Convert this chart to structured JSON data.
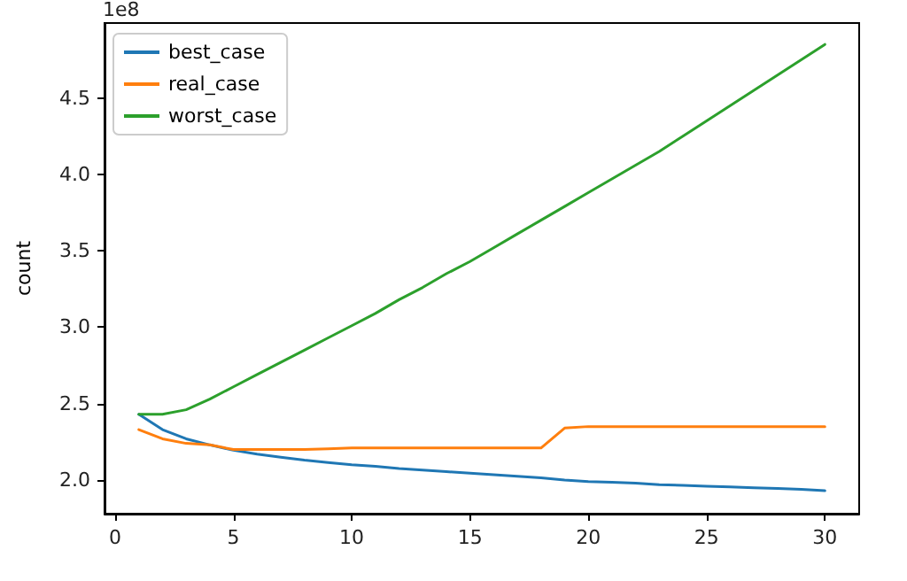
{
  "chart_data": {
    "type": "line",
    "ylabel": "count",
    "annotations": [
      "1e8"
    ],
    "x": [
      1,
      2,
      3,
      4,
      5,
      6,
      7,
      8,
      9,
      10,
      11,
      12,
      13,
      14,
      15,
      16,
      17,
      18,
      19,
      20,
      21,
      22,
      23,
      24,
      25,
      26,
      27,
      28,
      29,
      30
    ],
    "series": [
      {
        "name": "best_case",
        "color": "#1f77b4",
        "values": [
          2.43,
          2.33,
          2.27,
          2.23,
          2.195,
          2.17,
          2.15,
          2.13,
          2.115,
          2.1,
          2.09,
          2.075,
          2.065,
          2.055,
          2.045,
          2.035,
          2.025,
          2.015,
          2.0,
          1.99,
          1.985,
          1.98,
          1.97,
          1.965,
          1.96,
          1.955,
          1.95,
          1.945,
          1.94,
          1.93
        ]
      },
      {
        "name": "real_case",
        "color": "#ff7f0e",
        "values": [
          2.33,
          2.27,
          2.24,
          2.23,
          2.2,
          2.2,
          2.2,
          2.2,
          2.205,
          2.21,
          2.21,
          2.21,
          2.21,
          2.21,
          2.21,
          2.21,
          2.21,
          2.21,
          2.34,
          2.35,
          2.35,
          2.35,
          2.35,
          2.35,
          2.35,
          2.35,
          2.35,
          2.35,
          2.35,
          2.35
        ]
      },
      {
        "name": "worst_case",
        "color": "#2ca02c",
        "values": [
          2.43,
          2.43,
          2.46,
          2.53,
          2.61,
          2.69,
          2.77,
          2.85,
          2.93,
          3.01,
          3.09,
          3.18,
          3.26,
          3.35,
          3.43,
          3.52,
          3.61,
          3.7,
          3.79,
          3.88,
          3.97,
          4.06,
          4.15,
          4.25,
          4.35,
          4.45,
          4.55,
          4.65,
          4.75,
          4.85
        ]
      }
    ],
    "xlim": [
      -0.45,
      31.45
    ],
    "xticks": [
      0,
      5,
      10,
      15,
      20,
      25,
      30
    ],
    "ylim": [
      1.78,
      4.99
    ],
    "yticks": [
      {
        "value": 2,
        "label": "2.0"
      },
      {
        "value": 2.5,
        "label": "2.5"
      },
      {
        "value": 3,
        "label": "3.0"
      },
      {
        "value": 3.5,
        "label": "3.5"
      },
      {
        "value": 4,
        "label": "4.0"
      },
      {
        "value": 4.5,
        "label": "4.5"
      }
    ],
    "legend": "top left",
    "grid": false,
    "marker": "none",
    "line_style": "solid"
  }
}
